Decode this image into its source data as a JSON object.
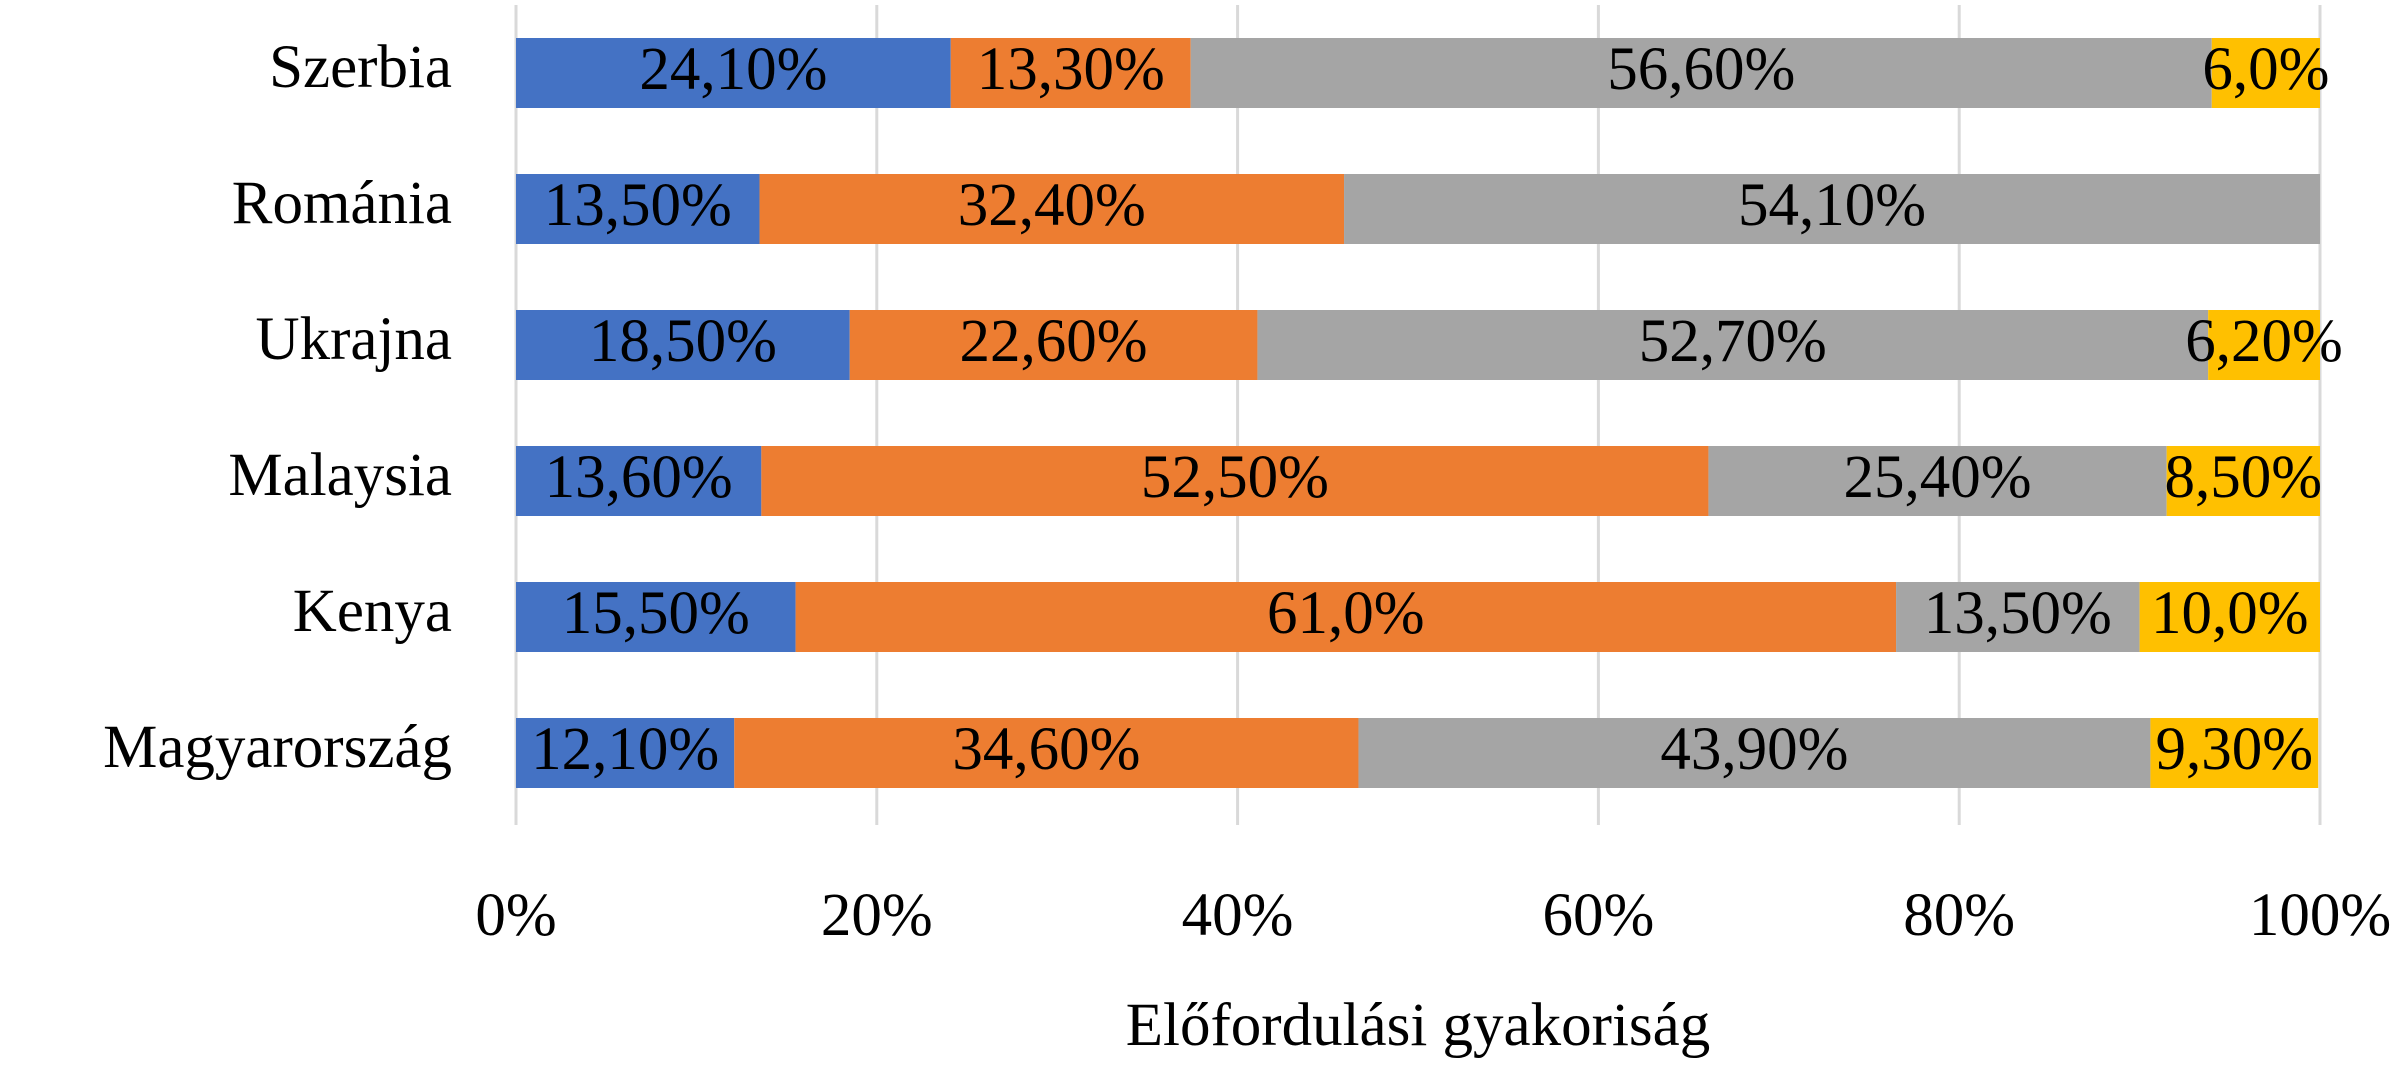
{
  "chart_data": {
    "type": "stacked_barh",
    "xlabel": "Előfordulási gyakoriság",
    "categories": [
      "Szerbia",
      "Románia",
      "Ukrajna",
      "Malaysia",
      "Kenya",
      "Magyarország"
    ],
    "series": [
      {
        "color": "#4472c4",
        "values": [
          24.1,
          13.5,
          18.5,
          13.6,
          15.5,
          12.1
        ],
        "value_labels": [
          "24,10%",
          "13,50%",
          "18,50%",
          "13,60%",
          "15,50%",
          "12,10%"
        ]
      },
      {
        "color": "#ed7d31",
        "values": [
          13.3,
          32.4,
          22.6,
          52.5,
          61.0,
          34.6
        ],
        "value_labels": [
          "13,30%",
          "32,40%",
          "22,60%",
          "52,50%",
          "61,0%",
          "34,60%"
        ]
      },
      {
        "color": "#a5a5a5",
        "values": [
          56.6,
          54.1,
          52.7,
          25.4,
          13.5,
          43.9
        ],
        "value_labels": [
          "56,60%",
          "54,10%",
          "52,70%",
          "25,40%",
          "13,50%",
          "43,90%"
        ]
      },
      {
        "color": "#ffc000",
        "values": [
          6.0,
          null,
          6.2,
          8.5,
          10.0,
          9.3
        ],
        "value_labels": [
          "6,0%",
          null,
          "6,20%",
          "8,50%",
          "10,0%",
          "9,30%"
        ]
      }
    ],
    "xlim": [
      0,
      100
    ],
    "xticks": [
      {
        "value": 0,
        "label": "0%"
      },
      {
        "value": 20,
        "label": "20%"
      },
      {
        "value": 40,
        "label": "40%"
      },
      {
        "value": 60,
        "label": "60%"
      },
      {
        "value": 80,
        "label": "80%"
      },
      {
        "value": 100,
        "label": "100%"
      }
    ],
    "grid": true
  }
}
